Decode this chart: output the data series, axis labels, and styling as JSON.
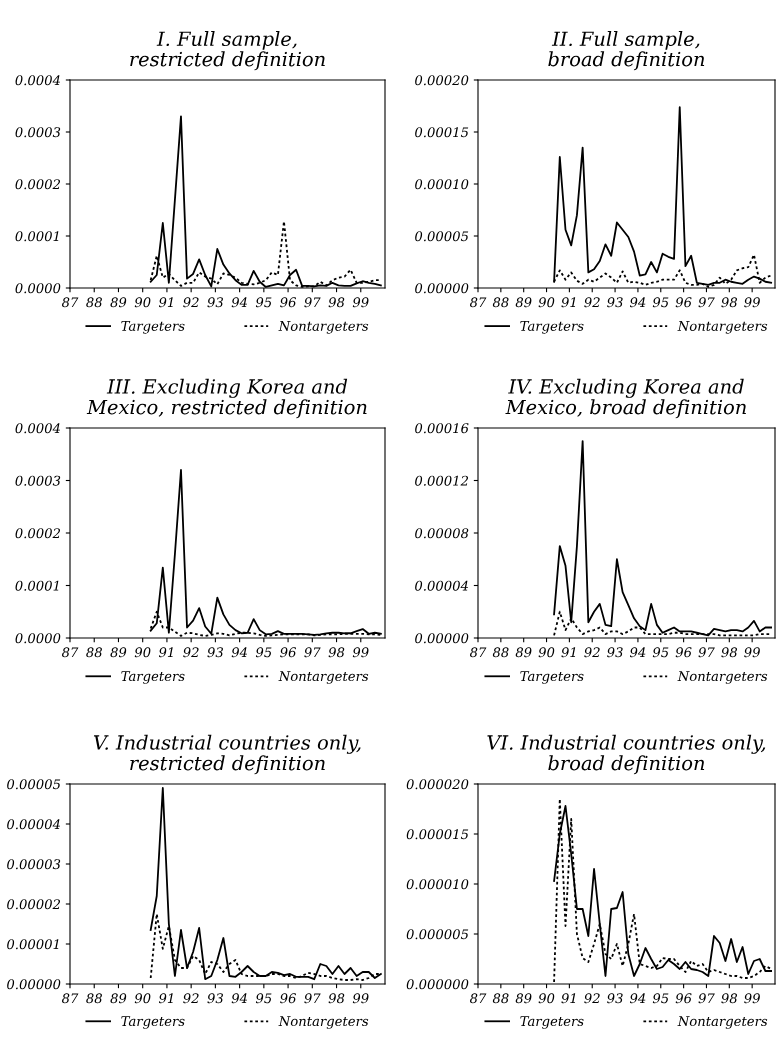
{
  "chart_data": [
    {
      "type": "line",
      "title": "I. Full sample,\nrestricted definition",
      "xlim": [
        87,
        100
      ],
      "xticks": [
        87,
        88,
        89,
        90,
        91,
        92,
        93,
        94,
        95,
        96,
        97,
        98,
        99
      ],
      "ylim": [
        0,
        0.0004
      ],
      "yticks": [
        {
          "value": 0,
          "label": "0.0000"
        },
        {
          "value": 0.0001,
          "label": "0.0001"
        },
        {
          "value": 0.0002,
          "label": "0.0002"
        },
        {
          "value": 0.0003,
          "label": "0.0003"
        },
        {
          "value": 0.0004,
          "label": "0.0004"
        }
      ],
      "grid": false,
      "legend": "bottom",
      "x": [
        90.33,
        90.58,
        90.83,
        91.08,
        91.33,
        91.58,
        91.83,
        92.08,
        92.33,
        92.58,
        92.83,
        93.08,
        93.33,
        93.58,
        93.83,
        94.08,
        94.33,
        94.58,
        94.83,
        95.08,
        95.33,
        95.58,
        95.83,
        96.08,
        96.33,
        96.58,
        96.83,
        97.08,
        97.33,
        97.58,
        97.83,
        98.08,
        98.33,
        98.58,
        98.83,
        99.08,
        99.33,
        99.58,
        99.83
      ],
      "series": [
        {
          "name": "Targeters",
          "color": "#000000",
          "line_style": "solid",
          "values": [
            1.2e-05,
            2.5e-05,
            0.000125,
            1e-05,
            0.00017,
            0.00033,
            1.8e-05,
            2.7e-05,
            5.5e-05,
            2.5e-05,
            3e-06,
            7.5e-05,
            4.5e-05,
            2.8e-05,
            1.5e-05,
            6e-06,
            6e-06,
            3.3e-05,
            1.2e-05,
            2e-06,
            5e-06,
            8e-06,
            5e-06,
            2.5e-05,
            3.5e-05,
            4e-06,
            4e-06,
            3e-06,
            5e-06,
            4e-06,
            1e-05,
            5e-06,
            4e-06,
            4e-06,
            9e-06,
            1.3e-05,
            1e-05,
            8e-06,
            5e-06
          ]
        },
        {
          "name": "Nontargeters",
          "color": "#000000",
          "line_style": "dotted",
          "values": [
            1.5e-05,
            6.2e-05,
            2e-05,
            2.7e-05,
            1.5e-05,
            4e-06,
            1e-05,
            1e-05,
            3e-05,
            2.2e-05,
            1.8e-05,
            7e-06,
            2.8e-05,
            2.5e-05,
            2e-05,
            1e-05,
            8e-06,
            7e-06,
            1e-05,
            1.5e-05,
            3e-05,
            2.5e-05,
            0.000128,
            1.5e-05,
            5e-06,
            2e-06,
            3e-06,
            3e-06,
            1.2e-05,
            5e-06,
            1.5e-05,
            2e-05,
            2.2e-05,
            3.5e-05,
            1e-05,
            1e-05,
            1.2e-05,
            1.5e-05,
            1.5e-05
          ]
        }
      ]
    },
    {
      "type": "line",
      "title": "II. Full sample,\nbroad definition",
      "xlim": [
        87,
        100
      ],
      "xticks": [
        87,
        88,
        89,
        90,
        91,
        92,
        93,
        94,
        95,
        96,
        97,
        98,
        99
      ],
      "ylim": [
        0,
        0.0002
      ],
      "yticks": [
        {
          "value": 0,
          "label": "0.00000"
        },
        {
          "value": 5e-05,
          "label": "0.00005"
        },
        {
          "value": 0.0001,
          "label": "0.00010"
        },
        {
          "value": 0.00015,
          "label": "0.00015"
        },
        {
          "value": 0.0002,
          "label": "0.00020"
        }
      ],
      "grid": false,
      "legend": "bottom",
      "x": [
        90.33,
        90.58,
        90.83,
        91.08,
        91.33,
        91.58,
        91.83,
        92.08,
        92.33,
        92.58,
        92.83,
        93.08,
        93.33,
        93.58,
        93.83,
        94.08,
        94.33,
        94.58,
        94.83,
        95.08,
        95.33,
        95.58,
        95.83,
        96.08,
        96.33,
        96.58,
        96.83,
        97.08,
        97.33,
        97.58,
        97.83,
        98.08,
        98.33,
        98.58,
        98.83,
        99.08,
        99.33,
        99.58,
        99.83
      ],
      "series": [
        {
          "name": "Targeters",
          "color": "#000000",
          "line_style": "solid",
          "values": [
            6e-06,
            0.000126,
            5.6e-05,
            4.1e-05,
            7e-05,
            0.000135,
            1.5e-05,
            1.8e-05,
            2.6e-05,
            4.2e-05,
            3.1e-05,
            6.3e-05,
            5.6e-05,
            4.9e-05,
            3.5e-05,
            1.2e-05,
            1.3e-05,
            2.5e-05,
            1.5e-05,
            3.3e-05,
            3e-05,
            2.8e-05,
            0.000174,
            2.1e-05,
            3.1e-05,
            5e-06,
            4e-06,
            3e-06,
            5e-06,
            5e-06,
            8e-06,
            6e-06,
            5e-06,
            4e-06,
            8e-06,
            1.1e-05,
            9e-06,
            6e-06,
            5e-06
          ]
        },
        {
          "name": "Nontargeters",
          "color": "#000000",
          "line_style": "dotted",
          "values": [
            6e-06,
            1.7e-05,
            8e-06,
            1.5e-05,
            7e-06,
            4e-06,
            8e-06,
            6e-06,
            1e-05,
            1.4e-05,
            1e-05,
            5e-06,
            1.6e-05,
            5e-06,
            6e-06,
            5e-06,
            3e-06,
            5e-06,
            6e-06,
            8e-06,
            8e-06,
            8e-06,
            1.7e-05,
            5e-06,
            3e-06,
            3e-06,
            4e-06,
            1e-06,
            3e-06,
            1e-05,
            4e-06,
            8e-06,
            1.7e-05,
            1.9e-05,
            2e-05,
            3.2e-05,
            5e-06,
            1e-05,
            1.2e-05
          ]
        }
      ]
    },
    {
      "type": "line",
      "title": "III. Excluding Korea and\nMexico, restricted definition",
      "xlim": [
        87,
        100
      ],
      "xticks": [
        87,
        88,
        89,
        90,
        91,
        92,
        93,
        94,
        95,
        96,
        97,
        98,
        99
      ],
      "ylim": [
        0,
        0.0004
      ],
      "yticks": [
        {
          "value": 0,
          "label": "0.0000"
        },
        {
          "value": 0.0001,
          "label": "0.0001"
        },
        {
          "value": 0.0002,
          "label": "0.0002"
        },
        {
          "value": 0.0003,
          "label": "0.0003"
        },
        {
          "value": 0.0004,
          "label": "0.0004"
        }
      ],
      "grid": false,
      "legend": "bottom",
      "x": [
        90.33,
        90.58,
        90.83,
        91.08,
        91.33,
        91.58,
        91.83,
        92.08,
        92.33,
        92.58,
        92.83,
        93.08,
        93.33,
        93.58,
        93.83,
        94.08,
        94.33,
        94.58,
        94.83,
        95.08,
        95.33,
        95.58,
        95.83,
        96.08,
        96.33,
        96.58,
        96.83,
        97.08,
        97.33,
        97.58,
        97.83,
        98.08,
        98.33,
        98.58,
        98.83,
        99.08,
        99.33,
        99.58,
        99.83
      ],
      "series": [
        {
          "name": "Targeters",
          "color": "#000000",
          "line_style": "solid",
          "values": [
            1.4e-05,
            2.8e-05,
            0.000134,
            1e-05,
            0.00016,
            0.00032,
            2e-05,
            3.3e-05,
            5.7e-05,
            2.2e-05,
            8e-06,
            7.7e-05,
            4.5e-05,
            2.5e-05,
            1.5e-05,
            9e-06,
            1e-05,
            3.6e-05,
            1.5e-05,
            7e-06,
            8e-06,
            1.3e-05,
            8e-06,
            8e-06,
            8e-06,
            8e-06,
            7e-06,
            6e-06,
            7e-06,
            9e-06,
            1e-05,
            1e-05,
            9e-06,
            9e-06,
            1.3e-05,
            1.7e-05,
            8e-06,
            1e-05,
            8e-06
          ]
        },
        {
          "name": "Nontargeters",
          "color": "#000000",
          "line_style": "dotted",
          "values": [
            1.8e-05,
            5e-05,
            2e-05,
            2e-05,
            1.2e-05,
            4e-06,
            1e-05,
            9e-06,
            6e-06,
            4e-06,
            6e-06,
            9e-06,
            8e-06,
            5e-06,
            8e-06,
            1e-05,
            1e-05,
            9e-06,
            6e-06,
            4e-06,
            5e-06,
            6e-06,
            7e-06,
            7e-06,
            7e-06,
            7e-06,
            7e-06,
            5e-06,
            6e-06,
            7e-06,
            7e-06,
            7e-06,
            8e-06,
            8e-06,
            8e-06,
            8e-06,
            7e-06,
            7e-06,
            6e-06
          ]
        }
      ]
    },
    {
      "type": "line",
      "title": "IV. Excluding Korea and\nMexico, broad definition",
      "xlim": [
        87,
        100
      ],
      "xticks": [
        87,
        88,
        89,
        90,
        91,
        92,
        93,
        94,
        95,
        96,
        97,
        98,
        99
      ],
      "ylim": [
        0,
        0.00016
      ],
      "yticks": [
        {
          "value": 0,
          "label": "0.00000"
        },
        {
          "value": 4e-05,
          "label": "0.00004"
        },
        {
          "value": 8e-05,
          "label": "0.00008"
        },
        {
          "value": 0.00012,
          "label": "0.00012"
        },
        {
          "value": 0.00016,
          "label": "0.00016"
        }
      ],
      "grid": false,
      "legend": "bottom",
      "x": [
        90.33,
        90.58,
        90.83,
        91.08,
        91.33,
        91.58,
        91.83,
        92.08,
        92.33,
        92.58,
        92.83,
        93.08,
        93.33,
        93.58,
        93.83,
        94.08,
        94.33,
        94.58,
        94.83,
        95.08,
        95.33,
        95.58,
        95.83,
        96.08,
        96.33,
        96.58,
        96.83,
        97.08,
        97.33,
        97.58,
        97.83,
        98.08,
        98.33,
        98.58,
        98.83,
        99.08,
        99.33,
        99.58,
        99.83
      ],
      "series": [
        {
          "name": "Targeters",
          "color": "#000000",
          "line_style": "solid",
          "values": [
            1.8e-05,
            7e-05,
            5.5e-05,
            1.2e-05,
            7e-05,
            0.00015,
            1.2e-05,
            2e-05,
            2.6e-05,
            1e-05,
            9e-06,
            6e-05,
            3.5e-05,
            2.5e-05,
            1.5e-05,
            9e-06,
            6e-06,
            2.6e-05,
            1e-05,
            4e-06,
            6e-06,
            8e-06,
            5e-06,
            5e-06,
            5e-06,
            4e-06,
            3e-06,
            2e-06,
            7e-06,
            6e-06,
            5e-06,
            6e-06,
            6e-06,
            5e-06,
            8e-06,
            1.3e-05,
            5e-06,
            8e-06,
            8e-06
          ]
        },
        {
          "name": "Nontargeters",
          "color": "#000000",
          "line_style": "dotted",
          "values": [
            2e-06,
            2e-05,
            6e-06,
            1.5e-05,
            8e-06,
            3e-06,
            5e-06,
            6e-06,
            8e-06,
            3e-06,
            5e-06,
            5e-06,
            3e-06,
            5e-06,
            8e-06,
            8e-06,
            3e-06,
            3e-06,
            3e-06,
            3e-06,
            3e-06,
            4e-06,
            4e-06,
            3e-06,
            3e-06,
            3e-06,
            3e-06,
            3e-06,
            3e-06,
            2e-06,
            2e-06,
            2e-06,
            2e-06,
            2e-06,
            2e-06,
            2e-06,
            3e-06,
            3e-06,
            3e-06
          ]
        }
      ]
    },
    {
      "type": "line",
      "title": "V. Industrial countries only,\nrestricted definition",
      "xlim": [
        87,
        100
      ],
      "xticks": [
        87,
        88,
        89,
        90,
        91,
        92,
        93,
        94,
        95,
        96,
        97,
        98,
        99
      ],
      "ylim": [
        0,
        5e-05
      ],
      "yticks": [
        {
          "value": 0,
          "label": "0.00000"
        },
        {
          "value": 1e-05,
          "label": "0.00001"
        },
        {
          "value": 2e-05,
          "label": "0.00002"
        },
        {
          "value": 3e-05,
          "label": "0.00003"
        },
        {
          "value": 4e-05,
          "label": "0.00004"
        },
        {
          "value": 5e-05,
          "label": "0.00005"
        }
      ],
      "grid": false,
      "legend": "bottom",
      "x": [
        90.33,
        90.58,
        90.83,
        91.08,
        91.33,
        91.58,
        91.83,
        92.08,
        92.33,
        92.58,
        92.83,
        93.08,
        93.33,
        93.58,
        93.83,
        94.08,
        94.33,
        94.58,
        94.83,
        95.08,
        95.33,
        95.58,
        95.83,
        96.08,
        96.33,
        96.58,
        96.83,
        97.08,
        97.33,
        97.58,
        97.83,
        98.08,
        98.33,
        98.58,
        98.83,
        99.08,
        99.33,
        99.58,
        99.83
      ],
      "series": [
        {
          "name": "Targeters",
          "color": "#000000",
          "line_style": "solid",
          "values": [
            1.35e-05,
            2.2e-05,
            4.9e-05,
            1.5e-05,
            2e-06,
            1.35e-05,
            4e-06,
            8e-06,
            1.4e-05,
            1.2e-06,
            2e-06,
            6e-06,
            1.15e-05,
            2e-06,
            1.8e-06,
            3e-06,
            4.5e-06,
            3e-06,
            2e-06,
            2e-06,
            3e-06,
            2.8e-06,
            2.2e-06,
            2.5e-06,
            1.8e-06,
            1.8e-06,
            1.8e-06,
            1.2e-06,
            5e-06,
            4.5e-06,
            2.5e-06,
            4.5e-06,
            2.5e-06,
            4e-06,
            2e-06,
            3e-06,
            3e-06,
            1.5e-06,
            2.5e-06
          ]
        },
        {
          "name": "Nontargeters",
          "color": "#000000",
          "line_style": "dotted",
          "values": [
            1.5e-06,
            1.75e-05,
            8.8e-06,
            1.45e-05,
            6e-06,
            4e-06,
            4e-06,
            7e-06,
            6e-06,
            2.5e-06,
            5.5e-06,
            5e-06,
            3e-06,
            5e-06,
            6e-06,
            2.5e-06,
            2e-06,
            2e-06,
            2e-06,
            2e-06,
            2.5e-06,
            2.5e-06,
            2e-06,
            2e-06,
            1.5e-06,
            2e-06,
            2.8e-06,
            2.5e-06,
            2e-06,
            2e-06,
            1.5e-06,
            1.2e-06,
            1e-06,
            1e-06,
            1.2e-06,
            1e-06,
            1.5e-06,
            2.5e-06,
            2.5e-06
          ]
        }
      ]
    },
    {
      "type": "line",
      "title": "VI. Industrial countries only,\nbroad definition",
      "xlim": [
        87,
        100
      ],
      "xticks": [
        87,
        88,
        89,
        90,
        91,
        92,
        93,
        94,
        95,
        96,
        97,
        98,
        99
      ],
      "ylim": [
        0,
        2e-05
      ],
      "yticks": [
        {
          "value": 0,
          "label": "0.000000"
        },
        {
          "value": 5e-06,
          "label": "0.000005"
        },
        {
          "value": 1e-05,
          "label": "0.000010"
        },
        {
          "value": 1.5e-05,
          "label": "0.000015"
        },
        {
          "value": 2e-05,
          "label": "0.000020"
        }
      ],
      "grid": false,
      "legend": "bottom",
      "x": [
        90.33,
        90.58,
        90.83,
        91.08,
        91.33,
        91.58,
        91.83,
        92.08,
        92.33,
        92.58,
        92.83,
        93.08,
        93.33,
        93.58,
        93.83,
        94.08,
        94.33,
        94.58,
        94.83,
        95.08,
        95.33,
        95.58,
        95.83,
        96.08,
        96.33,
        96.58,
        96.83,
        97.08,
        97.33,
        97.58,
        97.83,
        98.08,
        98.33,
        98.58,
        98.83,
        99.08,
        99.33,
        99.58,
        99.83
      ],
      "series": [
        {
          "name": "Targeters",
          "color": "#000000",
          "line_style": "solid",
          "values": [
            1.03e-05,
            1.5e-05,
            1.78e-05,
            1.3e-05,
            7.5e-06,
            7.5e-06,
            4.8e-06,
            1.15e-05,
            6e-06,
            8e-07,
            7.5e-06,
            7.6e-06,
            9.2e-06,
            3e-06,
            8e-07,
            2e-06,
            3.6e-06,
            2.5e-06,
            1.5e-06,
            1.7e-06,
            2.4e-06,
            2e-06,
            1.5e-06,
            2.2e-06,
            1.5e-06,
            1.4e-06,
            1.2e-06,
            8e-07,
            4.8e-06,
            4.1e-06,
            2.3e-06,
            4.5e-06,
            2.2e-06,
            3.7e-06,
            1e-06,
            2.3e-06,
            2.5e-06,
            1.3e-06,
            1.3e-06
          ]
        },
        {
          "name": "Nontargeters",
          "color": "#000000",
          "line_style": "dotted",
          "values": [
            2e-07,
            1.85e-05,
            5.8e-06,
            1.65e-05,
            5e-06,
            2.6e-06,
            2.2e-06,
            4e-06,
            6e-06,
            3e-06,
            2.5e-06,
            4e-06,
            1.8e-06,
            4e-06,
            7e-06,
            2e-06,
            1.8e-06,
            1.6e-06,
            1.8e-06,
            2.6e-06,
            2.5e-06,
            2.5e-06,
            1.8e-06,
            1.2e-06,
            2.3e-06,
            1.8e-06,
            2e-06,
            1.2e-06,
            1.4e-06,
            1.2e-06,
            1e-06,
            8e-07,
            8e-07,
            6e-07,
            6e-07,
            8e-07,
            1.2e-06,
            1.8e-06,
            1.5e-06
          ]
        }
      ]
    }
  ]
}
